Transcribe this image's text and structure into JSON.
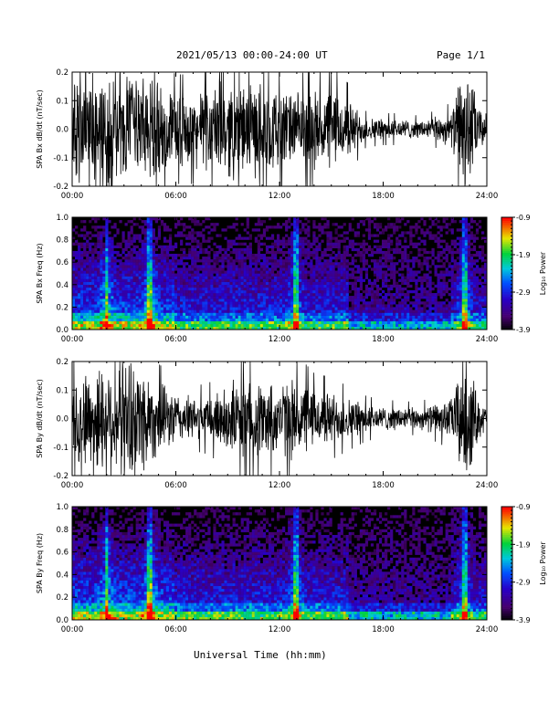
{
  "header": {
    "title": "2021/05/13  00:00-24:00 UT",
    "page": "Page 1/1"
  },
  "footer": {
    "xlabel": "Universal Time (hh:mm)"
  },
  "chart_data": [
    {
      "type": "line",
      "title": "",
      "ylabel": "SPA Bx dB/dt (nT/sec)",
      "xlabel": "",
      "xlim": [
        "00:00",
        "24:00"
      ],
      "ylim": [
        -0.2,
        0.2
      ],
      "x_ticks": [
        "00:00",
        "06:00",
        "12:00",
        "18:00",
        "24:00"
      ],
      "y_ticks": [
        "-0.2",
        "-0.1",
        "0.0",
        "0.1",
        "0.2"
      ],
      "amplitude_envelope": {
        "hours": [
          0,
          1,
          2,
          3,
          4,
          5,
          6,
          7,
          8,
          9,
          10,
          11,
          12,
          13,
          14,
          15,
          16,
          17,
          18,
          19,
          20,
          21,
          22,
          22.5,
          23,
          23.5,
          24
        ],
        "amplitude": [
          0.2,
          0.2,
          0.2,
          0.2,
          0.2,
          0.15,
          0.12,
          0.12,
          0.14,
          0.17,
          0.15,
          0.16,
          0.14,
          0.12,
          0.13,
          0.14,
          0.1,
          0.04,
          0.035,
          0.035,
          0.03,
          0.04,
          0.06,
          0.2,
          0.2,
          0.08,
          0.05
        ]
      }
    },
    {
      "type": "heatmap",
      "title": "",
      "ylabel": "SPA Bx Freq (Hz)",
      "xlabel": "",
      "xlim": [
        "00:00",
        "24:00"
      ],
      "ylim": [
        0.0,
        1.0
      ],
      "x_ticks": [
        "00:00",
        "06:00",
        "12:00",
        "18:00",
        "24:00"
      ],
      "y_ticks": [
        "0.0",
        "0.2",
        "0.4",
        "0.6",
        "0.8",
        "1.0"
      ],
      "colorbar": {
        "label": "Log₁₀ Power",
        "range": [
          -3.9,
          -0.9
        ],
        "ticks": [
          "-0.9",
          "-1.9",
          "-2.9",
          "-3.9"
        ]
      },
      "bright_lines_hours": [
        2.0,
        4.5,
        12.9,
        22.7
      ],
      "harmonic_bands_hz": [
        0.2,
        0.3
      ]
    },
    {
      "type": "line",
      "title": "",
      "ylabel": "SPA By dB/dt (nT/sec)",
      "xlabel": "",
      "xlim": [
        "00:00",
        "24:00"
      ],
      "ylim": [
        -0.2,
        0.2
      ],
      "x_ticks": [
        "00:00",
        "06:00",
        "12:00",
        "18:00",
        "24:00"
      ],
      "y_ticks": [
        "-0.2",
        "-0.1",
        "0.0",
        "0.1",
        "0.2"
      ],
      "amplitude_envelope": {
        "hours": [
          0,
          1,
          2,
          3,
          4,
          5,
          6,
          7,
          8,
          9,
          10,
          11,
          12,
          13,
          14,
          15,
          16,
          17,
          18,
          19,
          20,
          21,
          22,
          22.5,
          23,
          23.5,
          24
        ],
        "amplitude": [
          0.15,
          0.17,
          0.2,
          0.2,
          0.2,
          0.12,
          0.09,
          0.07,
          0.08,
          0.12,
          0.13,
          0.13,
          0.12,
          0.14,
          0.1,
          0.09,
          0.07,
          0.05,
          0.04,
          0.04,
          0.035,
          0.05,
          0.07,
          0.2,
          0.2,
          0.07,
          0.04
        ]
      }
    },
    {
      "type": "heatmap",
      "title": "",
      "ylabel": "SPA By Freq (Hz)",
      "xlabel": "",
      "xlim": [
        "00:00",
        "24:00"
      ],
      "ylim": [
        0.0,
        1.0
      ],
      "x_ticks": [
        "00:00",
        "06:00",
        "12:00",
        "18:00",
        "24:00"
      ],
      "y_ticks": [
        "0.0",
        "0.2",
        "0.4",
        "0.6",
        "0.8",
        "1.0"
      ],
      "colorbar": {
        "label": "Log₁₀ Power",
        "range": [
          -3.9,
          -0.9
        ],
        "ticks": [
          "-0.9",
          "-1.9",
          "-2.9",
          "-3.9"
        ]
      },
      "bright_lines_hours": [
        2.0,
        4.5,
        12.9,
        22.7
      ],
      "harmonic_bands_hz": [
        0.2,
        0.3
      ]
    }
  ]
}
